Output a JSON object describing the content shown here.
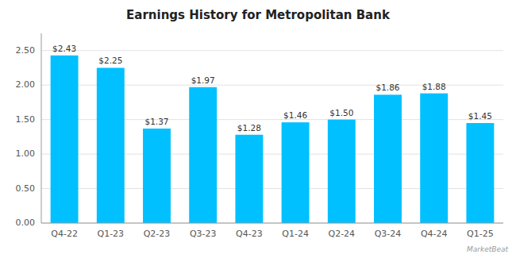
{
  "chart_data": {
    "type": "bar",
    "title": "Earnings History for Metropolitan Bank",
    "categories": [
      "Q4-22",
      "Q1-23",
      "Q2-23",
      "Q3-23",
      "Q4-23",
      "Q1-24",
      "Q2-24",
      "Q3-24",
      "Q4-24",
      "Q1-25"
    ],
    "values": [
      2.43,
      2.25,
      1.37,
      1.97,
      1.28,
      1.46,
      1.5,
      1.86,
      1.88,
      1.45
    ],
    "value_labels": [
      "$2.43",
      "$2.25",
      "$1.37",
      "$1.97",
      "$1.28",
      "$1.46",
      "$1.50",
      "$1.86",
      "$1.88",
      "$1.45"
    ],
    "data_labels": true,
    "color": "#00C0FF",
    "ylim": [
      0,
      2.75
    ],
    "yticks": [
      {
        "value": 0.0,
        "label": "0.00"
      },
      {
        "value": 0.5,
        "label": "0.50"
      },
      {
        "value": 1.0,
        "label": "1.00"
      },
      {
        "value": 1.5,
        "label": "1.50"
      },
      {
        "value": 2.0,
        "label": "2.00"
      },
      {
        "value": 2.5,
        "label": "2.50"
      }
    ],
    "grid": true,
    "annotations": [
      "MarketBeat"
    ]
  }
}
